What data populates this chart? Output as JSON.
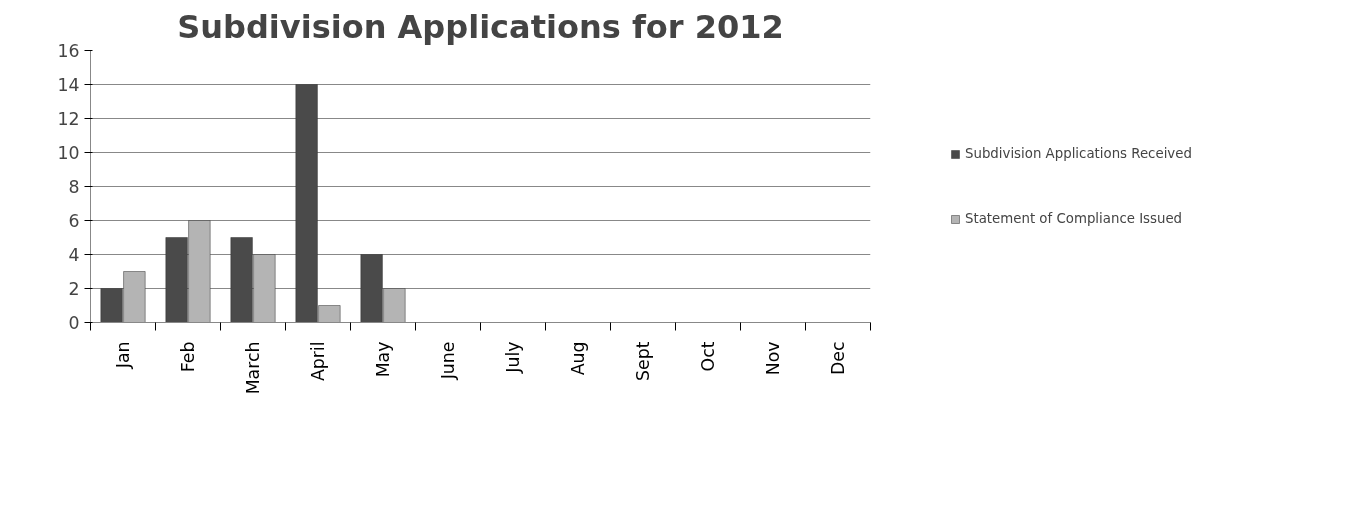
{
  "chart_data": {
    "type": "bar",
    "title": "Subdivision Applications for 2012",
    "categories": [
      "Jan",
      "Feb",
      "March",
      "April",
      "May",
      "June",
      "July",
      "Aug",
      "Sept",
      "Oct",
      "Nov",
      "Dec"
    ],
    "series": [
      {
        "name": "Subdivision Applications Received",
        "color": "#4a4a4a",
        "values": [
          2,
          5,
          5,
          14,
          4,
          null,
          null,
          null,
          null,
          null,
          null,
          null
        ]
      },
      {
        "name": "Statement of Compliance Issued",
        "color": "#b4b4b4",
        "values": [
          3,
          6,
          4,
          1,
          2,
          null,
          null,
          null,
          null,
          null,
          null,
          null
        ]
      }
    ],
    "ylim": [
      0,
      16
    ],
    "yticks": [
      0,
      2,
      4,
      6,
      8,
      10,
      12,
      14,
      16
    ],
    "grid": "y",
    "legend": "right"
  }
}
